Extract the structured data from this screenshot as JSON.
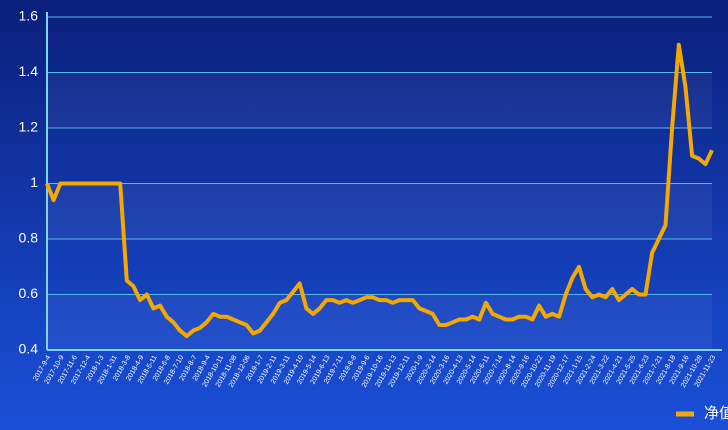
{
  "chart_data": {
    "type": "line",
    "x": [
      "2017-9-4",
      null,
      "2017-10-9",
      null,
      "2017-11-6",
      null,
      "2017-12-4",
      null,
      "2018-1-3",
      null,
      "2018-1-31",
      null,
      "2018-3-8",
      null,
      "2018-4-9",
      null,
      "2018-5-11",
      null,
      "2018-6-8",
      null,
      "2018-7-10",
      null,
      "2018-8-7",
      null,
      "2018-9-4",
      null,
      "2018-10-11",
      null,
      "2018-11-08",
      null,
      "2018-12-06",
      null,
      "2019-1-7",
      null,
      "2019-2-11",
      null,
      "2019-3-11",
      null,
      "2019-4-10",
      null,
      "2019-5-14",
      null,
      "2019-6-13",
      null,
      "2019-7-11",
      null,
      "2019-8-8",
      null,
      "2019-9-6",
      null,
      "2019-10-16",
      null,
      "2019-11-13",
      null,
      "2019-12-11",
      null,
      "2020-1-9",
      null,
      "2020-2-14",
      null,
      "2020-3-16",
      null,
      "2020-4-13",
      null,
      "2020-5-14",
      null,
      "2020-6-11",
      null,
      "2020-7-14",
      null,
      "2020-8-14",
      null,
      "2020-9-16",
      null,
      "2020-10-22",
      null,
      "2020-11-19",
      null,
      "2020-12-17",
      null,
      "2021-1-15",
      null,
      "2021-2-24",
      null,
      "2021-3-22",
      null,
      "2021-4-21",
      null,
      "2021-5-25",
      null,
      "2021-6-23",
      null,
      "2021-7-21",
      null,
      "2021-8-18",
      null,
      "2021-9-16",
      null,
      "2021-10-28",
      null,
      "2021-11-23"
    ],
    "series": [
      {
        "name": "净值",
        "color": "#f5a800",
        "values": [
          1.0,
          0.94,
          1.0,
          1.0,
          1.0,
          1.0,
          1.0,
          1.0,
          1.0,
          1.0,
          1.0,
          1.0,
          0.65,
          0.63,
          0.58,
          0.6,
          0.55,
          0.56,
          0.52,
          0.5,
          0.47,
          0.45,
          0.47,
          0.48,
          0.5,
          0.53,
          0.52,
          0.52,
          0.51,
          0.5,
          0.49,
          0.46,
          0.47,
          0.5,
          0.53,
          0.57,
          0.58,
          0.61,
          0.64,
          0.55,
          0.53,
          0.55,
          0.58,
          0.58,
          0.57,
          0.58,
          0.57,
          0.58,
          0.59,
          0.59,
          0.58,
          0.58,
          0.57,
          0.58,
          0.58,
          0.58,
          0.55,
          0.54,
          0.53,
          0.49,
          0.49,
          0.5,
          0.51,
          0.51,
          0.52,
          0.51,
          0.57,
          0.53,
          0.52,
          0.51,
          0.51,
          0.52,
          0.52,
          0.51,
          0.56,
          0.52,
          0.53,
          0.52,
          0.6,
          0.66,
          0.7,
          0.62,
          0.59,
          0.6,
          0.59,
          0.62,
          0.58,
          0.6,
          0.62,
          0.6,
          0.6,
          0.75,
          0.8,
          0.85,
          1.2,
          1.5,
          1.35,
          1.1,
          1.09,
          1.07,
          1.12
        ]
      }
    ],
    "ylim": [
      0.4,
      1.6
    ],
    "yticks": [
      0.4,
      0.6,
      0.8,
      1,
      1.2,
      1.4,
      1.6
    ],
    "grid": true,
    "legend": "bottom-right"
  }
}
